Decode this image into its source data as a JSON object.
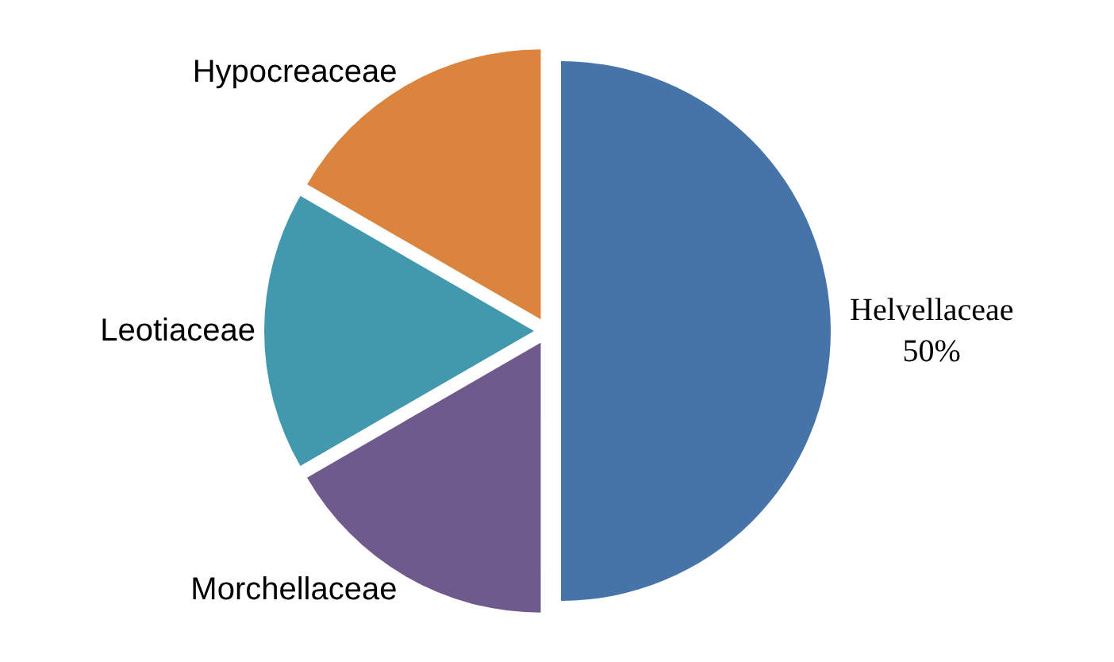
{
  "chart_data": {
    "type": "pie",
    "categories": [
      "Helvellaceae",
      "Morchellaceae",
      "Leotiaceae",
      "Hypocreaceae"
    ],
    "values": [
      50,
      16.67,
      16.67,
      16.66
    ],
    "value_labels": [
      "50%",
      null,
      null,
      null
    ],
    "colors": [
      "#4674a8",
      "#6f5a8e",
      "#4299ae",
      "#db843d"
    ],
    "legend": false
  }
}
